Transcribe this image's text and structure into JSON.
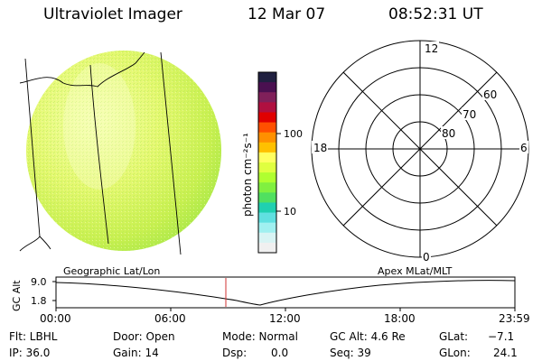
{
  "header": {
    "title": "Ultraviolet Imager",
    "date": "12 Mar 07",
    "time": "08:52:31 UT"
  },
  "colorbar": {
    "unit_label": "photon cm⁻²s⁻¹",
    "ticks": [
      "100",
      "10"
    ],
    "colors": [
      "#202040",
      "#4a1050",
      "#80205a",
      "#b01040",
      "#e00000",
      "#ff5000",
      "#ff9000",
      "#ffc000",
      "#ffff60",
      "#e0ff40",
      "#b0ff30",
      "#80f040",
      "#50e060",
      "#20d0b0",
      "#60e0e0",
      "#a0f0f0",
      "#d8f4f4",
      "#f0f0f0"
    ]
  },
  "polar_plot": {
    "mlt_labels": {
      "top": "12",
      "left": "18",
      "right": "6",
      "bottom": "0"
    },
    "lat_labels": [
      "60",
      "70",
      "80"
    ]
  },
  "timeline": {
    "ylabel": "GC Alt",
    "left_title": "Geographic Lat/Lon",
    "right_title": "Apex MLat/MLT",
    "y_ticks": [
      "9.0",
      "1.8"
    ],
    "x_ticks": [
      "00:00",
      "06:00",
      "12:00",
      "18:00",
      "23:59"
    ],
    "marker_time": "08:52"
  },
  "status": {
    "filter": "Flt: LBHL",
    "ip": "IP: 36.0",
    "door": "Door: Open",
    "gain": "Gain: 14",
    "mode": "Mode: Normal",
    "dsp_label": "Dsp:",
    "dsp_value": "0.0",
    "gc_alt": "GC Alt: 4.6 Re",
    "seq": "Seq: 39",
    "glat_label": "GLat:",
    "glat_value": "−7.1",
    "glon_label": "GLon:",
    "glon_value": "24.1"
  }
}
